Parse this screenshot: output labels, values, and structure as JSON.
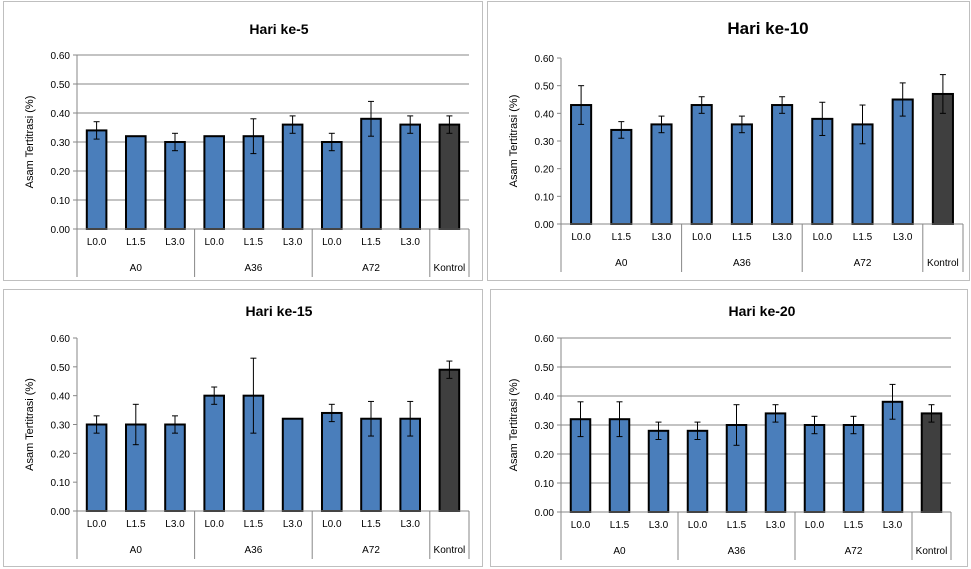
{
  "chart_data": [
    {
      "type": "bar",
      "title": "Hari ke-5",
      "ylabel": "Asam Tertitrasi (%)",
      "ylim": [
        0,
        0.6
      ],
      "yticks": [
        "0.00",
        "0.10",
        "0.20",
        "0.30",
        "0.40",
        "0.50",
        "0.60"
      ],
      "categories": [
        "L0.0",
        "L1.5",
        "L3.0",
        "L0.0",
        "L1.5",
        "L3.0",
        "L0.0",
        "L1.5",
        "L3.0",
        "Kontrol"
      ],
      "groups": [
        {
          "label": "A0",
          "size": 3
        },
        {
          "label": "A36",
          "size": 3
        },
        {
          "label": "A72",
          "size": 3
        },
        {
          "label": "",
          "size": 1
        }
      ],
      "values": [
        0.34,
        0.32,
        0.3,
        0.32,
        0.32,
        0.36,
        0.3,
        0.38,
        0.36,
        0.36
      ],
      "errors": [
        0.03,
        0.0,
        0.03,
        0.0,
        0.06,
        0.03,
        0.03,
        0.06,
        0.03,
        0.03
      ],
      "bar_colors": [
        "#4a7ebb",
        "#4a7ebb",
        "#4a7ebb",
        "#4a7ebb",
        "#4a7ebb",
        "#4a7ebb",
        "#4a7ebb",
        "#4a7ebb",
        "#4a7ebb",
        "#3f3f3f"
      ],
      "grid": true
    },
    {
      "type": "bar",
      "title": "Hari ke-10",
      "ylabel": "Asam Tertitrasi (%)",
      "ylim": [
        0,
        0.6
      ],
      "yticks": [
        "0.00",
        "0.10",
        "0.20",
        "0.30",
        "0.40",
        "0.50",
        "0.60"
      ],
      "categories": [
        "L0.0",
        "L1.5",
        "L3.0",
        "L0.0",
        "L1.5",
        "L3.0",
        "L0.0",
        "L1.5",
        "L3.0",
        "Kontrol"
      ],
      "groups": [
        {
          "label": "A0",
          "size": 3
        },
        {
          "label": "A36",
          "size": 3
        },
        {
          "label": "A72",
          "size": 3
        },
        {
          "label": "",
          "size": 1
        }
      ],
      "values": [
        0.43,
        0.34,
        0.36,
        0.43,
        0.36,
        0.43,
        0.38,
        0.36,
        0.45,
        0.47
      ],
      "errors": [
        0.07,
        0.03,
        0.03,
        0.03,
        0.03,
        0.03,
        0.06,
        0.07,
        0.06,
        0.07
      ],
      "bar_colors": [
        "#4a7ebb",
        "#4a7ebb",
        "#4a7ebb",
        "#4a7ebb",
        "#4a7ebb",
        "#4a7ebb",
        "#4a7ebb",
        "#4a7ebb",
        "#4a7ebb",
        "#3f3f3f"
      ],
      "grid": false
    },
    {
      "type": "bar",
      "title": "Hari ke-15",
      "ylabel": "Asam Tertitrasi (%)",
      "ylim": [
        0,
        0.6
      ],
      "yticks": [
        "0.00",
        "0.10",
        "0.20",
        "0.30",
        "0.40",
        "0.50",
        "0.60"
      ],
      "categories": [
        "L0.0",
        "L1.5",
        "L3.0",
        "L0.0",
        "L1.5",
        "L3.0",
        "L0.0",
        "L1.5",
        "L3.0",
        "Kontrol"
      ],
      "groups": [
        {
          "label": "A0",
          "size": 3
        },
        {
          "label": "A36",
          "size": 3
        },
        {
          "label": "A72",
          "size": 3
        },
        {
          "label": "",
          "size": 1
        }
      ],
      "values": [
        0.3,
        0.3,
        0.3,
        0.4,
        0.4,
        0.32,
        0.34,
        0.32,
        0.32,
        0.49
      ],
      "errors": [
        0.03,
        0.07,
        0.03,
        0.03,
        0.13,
        0.0,
        0.03,
        0.06,
        0.06,
        0.03
      ],
      "bar_colors": [
        "#4a7ebb",
        "#4a7ebb",
        "#4a7ebb",
        "#4a7ebb",
        "#4a7ebb",
        "#4a7ebb",
        "#4a7ebb",
        "#4a7ebb",
        "#4a7ebb",
        "#3f3f3f"
      ],
      "grid": false
    },
    {
      "type": "bar",
      "title": "Hari ke-20",
      "ylabel": "Asam Tertitrasi (%)",
      "ylim": [
        0,
        0.6
      ],
      "yticks": [
        "0.00",
        "0.10",
        "0.20",
        "0.30",
        "0.40",
        "0.50",
        "0.60"
      ],
      "categories": [
        "L0.0",
        "L1.5",
        "L3.0",
        "L0.0",
        "L1.5",
        "L3.0",
        "L0.0",
        "L1.5",
        "L3.0",
        "Kontrol"
      ],
      "groups": [
        {
          "label": "A0",
          "size": 3
        },
        {
          "label": "A36",
          "size": 3
        },
        {
          "label": "A72",
          "size": 3
        },
        {
          "label": "",
          "size": 1
        }
      ],
      "values": [
        0.32,
        0.32,
        0.28,
        0.28,
        0.3,
        0.34,
        0.3,
        0.3,
        0.38,
        0.34
      ],
      "errors": [
        0.06,
        0.06,
        0.03,
        0.03,
        0.07,
        0.03,
        0.03,
        0.03,
        0.06,
        0.03
      ],
      "bar_colors": [
        "#4a7ebb",
        "#4a7ebb",
        "#4a7ebb",
        "#4a7ebb",
        "#4a7ebb",
        "#4a7ebb",
        "#4a7ebb",
        "#4a7ebb",
        "#4a7ebb",
        "#3f3f3f"
      ],
      "grid": true
    }
  ],
  "kontrol_label": "Kontrol"
}
